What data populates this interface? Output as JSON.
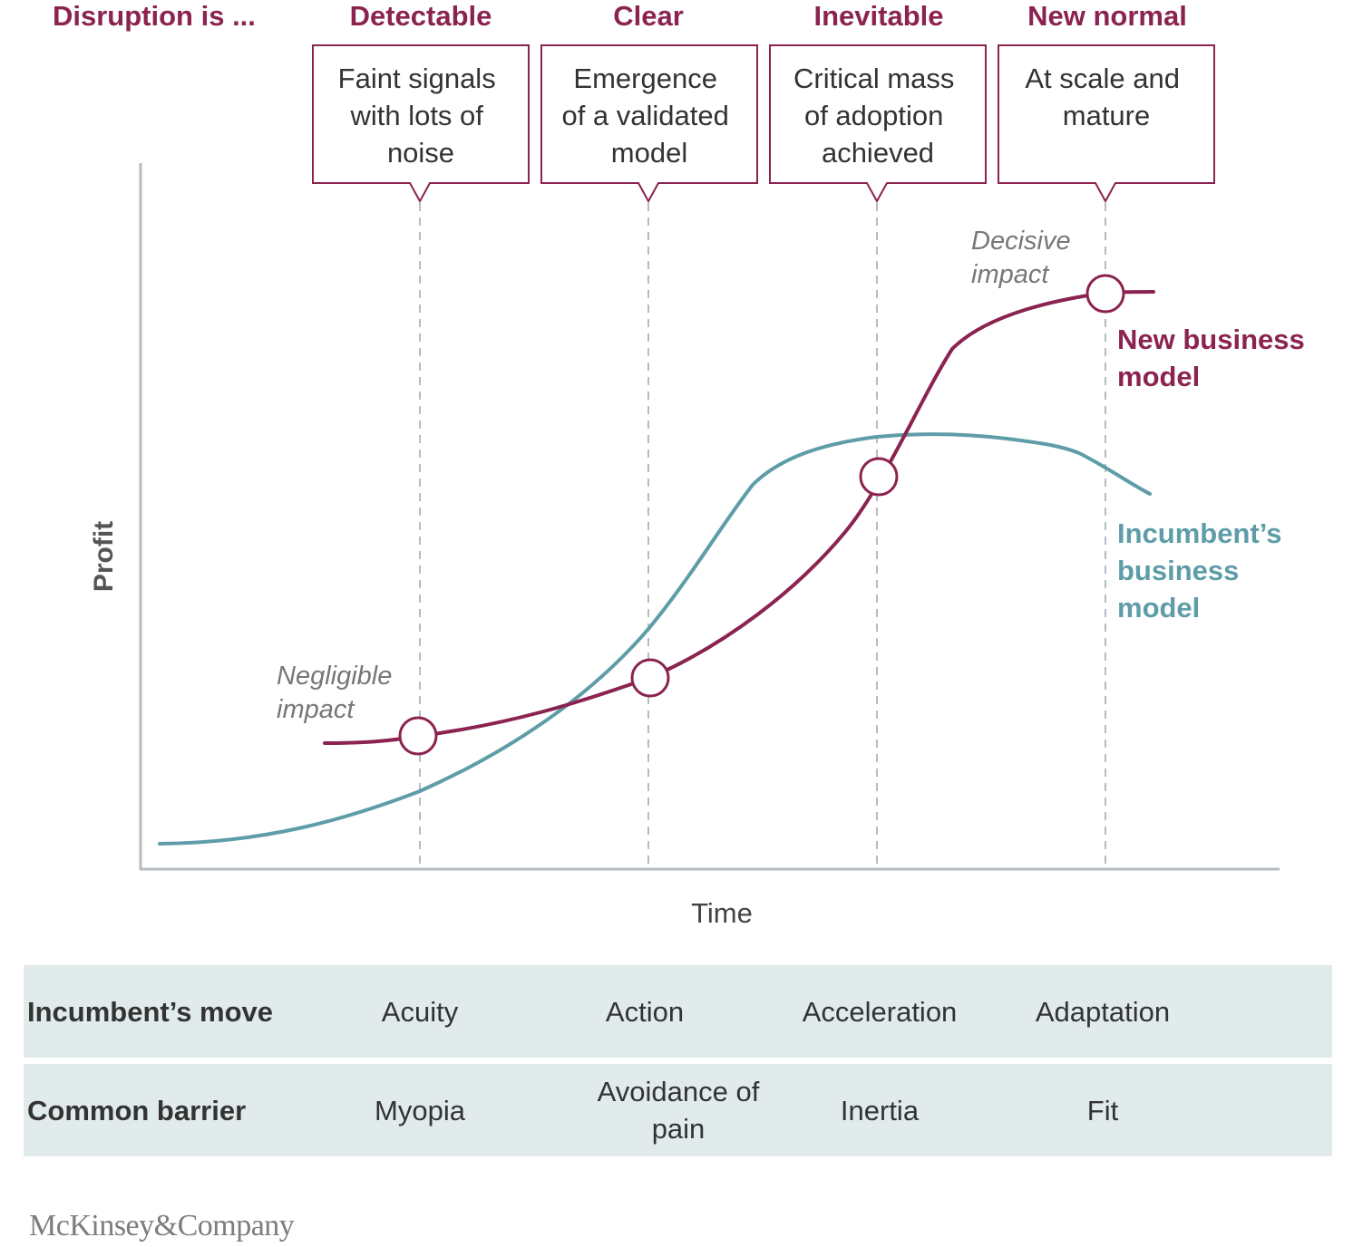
{
  "colors": {
    "new_model": "#8b2350",
    "incumbent": "#5e9da8",
    "axis": "#b5bcc1",
    "text_dark": "#333333",
    "annotation": "#777777",
    "table_bg": "#e1ebec"
  },
  "header": {
    "row_label": "Disruption is ...",
    "stages": [
      "Detectable",
      "Clear",
      "Inevitable",
      "New normal"
    ]
  },
  "callouts": [
    [
      "Faint signals",
      "with lots of",
      "noise"
    ],
    [
      "Emergence",
      "of a validated",
      "model"
    ],
    [
      "Critical mass",
      "of adoption",
      "achieved"
    ],
    [
      "At scale and",
      "mature"
    ]
  ],
  "annotations": {
    "negligible": [
      "Negligible",
      "impact"
    ],
    "decisive": [
      "Decisive",
      "impact"
    ]
  },
  "chart_data": {
    "type": "line",
    "xlabel": "Time",
    "ylabel": "Profit",
    "series": [
      {
        "name": "New business model",
        "label_lines": [
          "New business",
          "model"
        ],
        "color": "#8b2350"
      },
      {
        "name": "Incumbent’s business model",
        "label_lines": [
          "Incumbent’s",
          "business",
          "model"
        ],
        "color": "#5e9da8"
      }
    ]
  },
  "table": {
    "rows": [
      {
        "label": "Incumbent’s move",
        "values": [
          "Acuity",
          "Action",
          "Acceleration",
          "Adaptation"
        ]
      },
      {
        "label": "Common barrier",
        "values": [
          "Myopia",
          "Avoidance of pain",
          "Inertia",
          "Fit"
        ]
      }
    ]
  },
  "brand": "McKinsey&Company"
}
